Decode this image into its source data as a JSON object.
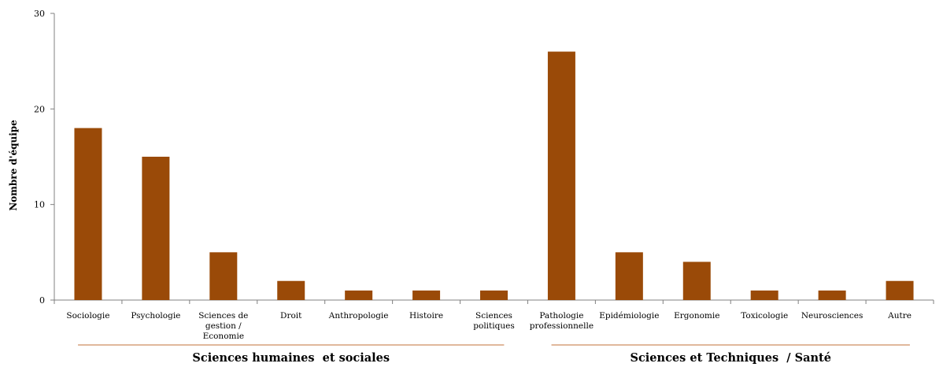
{
  "chart_data": {
    "type": "bar",
    "ylabel": "Nombre d'équipe",
    "ylim": [
      0,
      30
    ],
    "yticks": [
      0,
      10,
      20,
      30
    ],
    "categories": [
      [
        "Sociologie"
      ],
      [
        "Psychologie"
      ],
      [
        "Sciences de",
        "gestion /",
        "Economie"
      ],
      [
        "Droit"
      ],
      [
        "Anthropologie"
      ],
      [
        "Histoire"
      ],
      [
        "Sciences",
        "politiques"
      ],
      [
        "Pathologie",
        "professionnelle"
      ],
      [
        "Epidémiologie"
      ],
      [
        "Ergonomie"
      ],
      [
        "Toxicologie"
      ],
      [
        "Neurosciences"
      ],
      [
        "Autre"
      ]
    ],
    "values": [
      18,
      15,
      5,
      2,
      1,
      1,
      1,
      26,
      5,
      4,
      1,
      1,
      2
    ],
    "groups": [
      {
        "label": "Sciences humaines  et sociales",
        "from": 0,
        "to": 6
      },
      {
        "label": "Sciences et Techniques  / Santé",
        "from": 7,
        "to": 12
      }
    ],
    "bar_color": "#9a4a08",
    "axis_color": "#808080",
    "group_line_color": "#c0703a",
    "grid": false
  }
}
